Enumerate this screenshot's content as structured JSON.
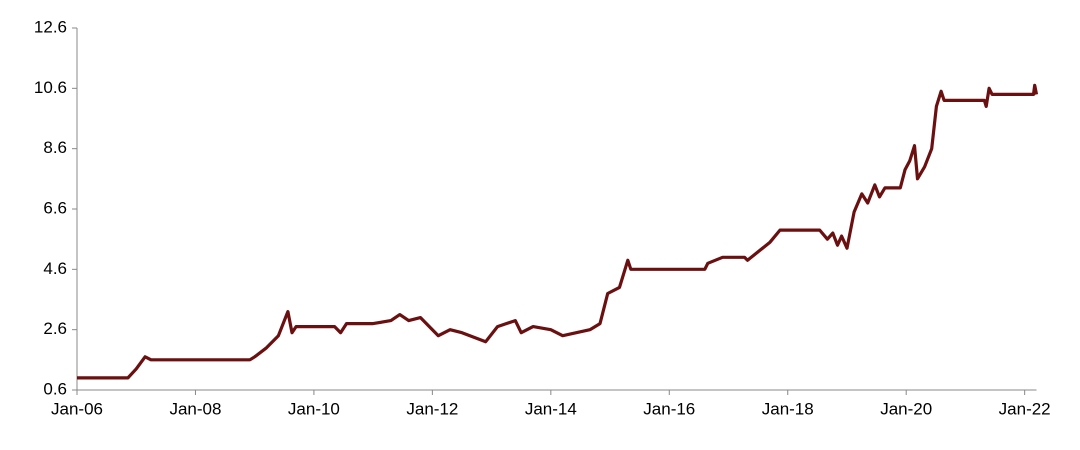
{
  "chart_data": {
    "type": "line",
    "x": [
      2006.0,
      2006.86,
      2007.0,
      2007.15,
      2007.25,
      2008.92,
      2009.0,
      2009.2,
      2009.4,
      2009.56,
      2009.63,
      2009.7,
      2010.35,
      2010.45,
      2010.55,
      2011.0,
      2011.3,
      2011.45,
      2011.6,
      2011.8,
      2012.1,
      2012.3,
      2012.5,
      2012.9,
      2013.1,
      2013.4,
      2013.5,
      2013.7,
      2014.0,
      2014.2,
      2014.66,
      2014.83,
      2014.96,
      2015.16,
      2015.3,
      2015.35,
      2016.6,
      2016.65,
      2016.9,
      2017.27,
      2017.32,
      2017.7,
      2017.87,
      2018.54,
      2018.67,
      2018.76,
      2018.84,
      2018.91,
      2019.0,
      2019.12,
      2019.25,
      2019.35,
      2019.47,
      2019.55,
      2019.64,
      2019.9,
      2019.98,
      2020.06,
      2020.14,
      2020.19,
      2020.31,
      2020.43,
      2020.51,
      2020.59,
      2020.64,
      2021.32,
      2021.35,
      2021.4,
      2021.45,
      2022.15,
      2022.17,
      2022.2
    ],
    "series": [
      {
        "color": "#6b1010",
        "values": [
          1.0,
          1.0,
          1.3,
          1.7,
          1.6,
          1.6,
          1.7,
          2.0,
          2.4,
          3.2,
          2.5,
          2.7,
          2.7,
          2.5,
          2.8,
          2.8,
          2.9,
          3.1,
          2.9,
          3.0,
          2.4,
          2.6,
          2.5,
          2.2,
          2.7,
          2.9,
          2.5,
          2.7,
          2.6,
          2.4,
          2.6,
          2.8,
          3.8,
          4.0,
          4.9,
          4.6,
          4.6,
          4.8,
          5.0,
          5.0,
          4.9,
          5.5,
          5.9,
          5.9,
          5.6,
          5.8,
          5.4,
          5.7,
          5.3,
          6.5,
          7.1,
          6.8,
          7.4,
          7.0,
          7.3,
          7.3,
          7.9,
          8.2,
          8.7,
          7.6,
          8.0,
          8.6,
          10.0,
          10.5,
          10.2,
          10.2,
          10.0,
          10.6,
          10.4,
          10.4,
          10.7,
          10.4
        ]
      }
    ],
    "xlim": [
      2006.0,
      2022.2
    ],
    "xticks": [
      {
        "value": 2006,
        "label": "Jan-06"
      },
      {
        "value": 2008,
        "label": "Jan-08"
      },
      {
        "value": 2010,
        "label": "Jan-10"
      },
      {
        "value": 2012,
        "label": "Jan-12"
      },
      {
        "value": 2014,
        "label": "Jan-14"
      },
      {
        "value": 2016,
        "label": "Jan-16"
      },
      {
        "value": 2018,
        "label": "Jan-18"
      },
      {
        "value": 2020,
        "label": "Jan-20"
      },
      {
        "value": 2022,
        "label": "Jan-22"
      }
    ],
    "ylim": [
      0.6,
      12.6
    ],
    "yticks": [
      0.6,
      2.6,
      4.6,
      6.6,
      8.6,
      10.6,
      12.6
    ]
  }
}
